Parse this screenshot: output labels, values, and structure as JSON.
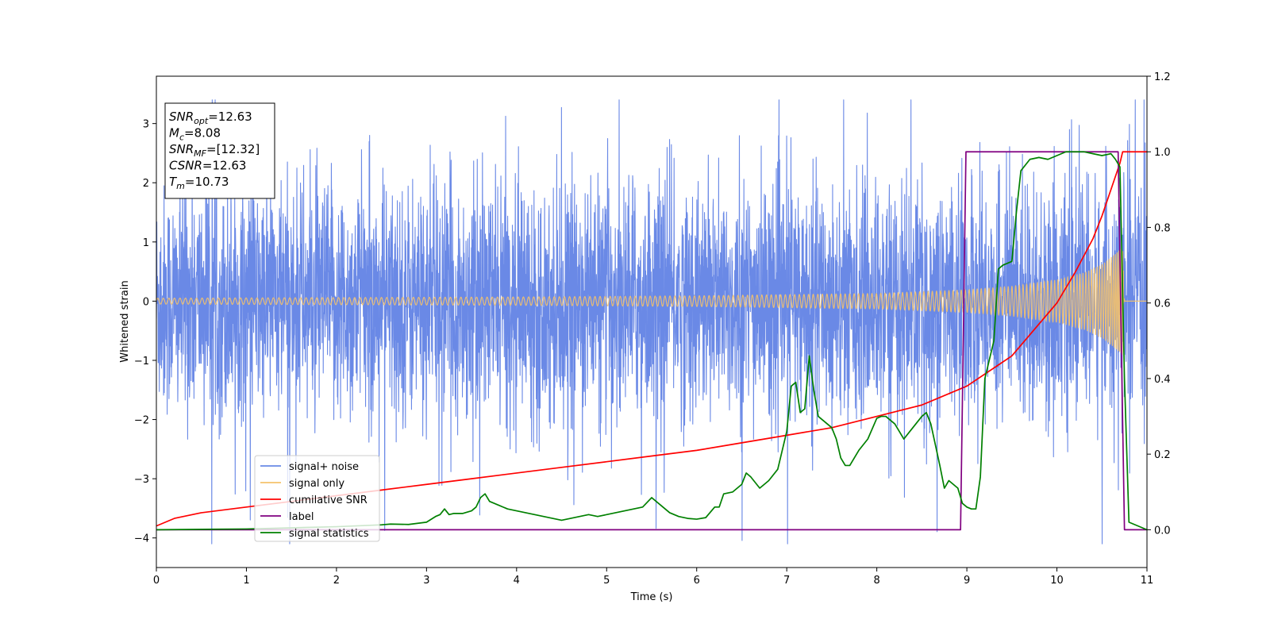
{
  "chart_data": {
    "type": "line",
    "xlabel": "Time (s)",
    "ylabel": "Whitened strain",
    "xlim": [
      0,
      11
    ],
    "ylim_left": [
      -4.5,
      3.8
    ],
    "ylim_right": [
      -0.1,
      1.2
    ],
    "xticks": [
      0,
      1,
      2,
      3,
      4,
      5,
      6,
      7,
      8,
      9,
      10,
      11
    ],
    "yticks_left": [
      -4,
      -3,
      -2,
      -1,
      0,
      1,
      2,
      3
    ],
    "yticks_right": [
      0.0,
      0.2,
      0.4,
      0.6,
      0.8,
      1.0,
      1.2
    ],
    "grid": false,
    "legend_position": "lower-left",
    "annotation": {
      "lines": [
        {
          "sym": "SNR",
          "sub": "opt",
          "value": "=12.63"
        },
        {
          "sym": "M",
          "sub": "c",
          "value": "=8.08"
        },
        {
          "sym": "SNR",
          "sub": "MF",
          "value": "=[12.32]"
        },
        {
          "sym": "CSNR",
          "sub": "",
          "value": "=12.63"
        },
        {
          "sym": "T",
          "sub": "m",
          "value": "=10.73"
        }
      ]
    },
    "series": [
      {
        "name": "signal+ noise",
        "axis": "left",
        "color": "#6a89e6",
        "noise_envelope": {
          "typical_abs": 1.6,
          "max_abs": 3.4
        },
        "note_values": "dense noisy strain, min about -4.15 near t=3.38, max about 3.42 near t=8.1"
      },
      {
        "name": "signal only",
        "axis": "left",
        "color": "#f4c26b",
        "amplitude": [
          [
            0,
            0.05
          ],
          [
            2,
            0.06
          ],
          [
            4,
            0.07
          ],
          [
            6,
            0.09
          ],
          [
            8,
            0.13
          ],
          [
            9,
            0.19
          ],
          [
            9.5,
            0.25
          ],
          [
            10,
            0.36
          ],
          [
            10.3,
            0.48
          ],
          [
            10.5,
            0.62
          ],
          [
            10.65,
            0.8
          ],
          [
            10.73,
            0.92
          ],
          [
            10.75,
            0.0
          ],
          [
            11,
            0.0
          ]
        ]
      },
      {
        "name": "cumilative SNR",
        "axis": "right",
        "color": "#ff0000",
        "x": [
          0,
          0.2,
          0.5,
          1,
          1.5,
          2,
          2.5,
          3,
          3.5,
          4,
          4.5,
          5,
          5.5,
          6,
          6.5,
          7,
          7.5,
          8,
          8.5,
          9,
          9.5,
          10,
          10.2,
          10.4,
          10.5,
          10.6,
          10.7,
          10.73,
          11
        ],
        "y": [
          0.01,
          0.03,
          0.045,
          0.06,
          0.075,
          0.09,
          0.105,
          0.12,
          0.135,
          0.15,
          0.165,
          0.18,
          0.195,
          0.21,
          0.23,
          0.25,
          0.27,
          0.3,
          0.33,
          0.38,
          0.46,
          0.6,
          0.68,
          0.77,
          0.83,
          0.9,
          0.97,
          1.0,
          1.0
        ]
      },
      {
        "name": "label",
        "axis": "right",
        "color": "#800080",
        "x": [
          0,
          8.93,
          8.99,
          10.68,
          10.75,
          11
        ],
        "y": [
          0,
          0,
          1,
          1,
          0,
          0
        ]
      },
      {
        "name": "signal statistics",
        "axis": "right",
        "color": "#008000",
        "x": [
          0,
          1.0,
          2.0,
          2.5,
          2.6,
          2.8,
          3.0,
          3.1,
          3.15,
          3.2,
          3.25,
          3.3,
          3.4,
          3.5,
          3.55,
          3.6,
          3.65,
          3.7,
          3.8,
          3.9,
          4.0,
          4.1,
          4.2,
          4.3,
          4.4,
          4.5,
          4.6,
          4.7,
          4.8,
          4.9,
          5.0,
          5.1,
          5.2,
          5.3,
          5.4,
          5.5,
          5.55,
          5.6,
          5.7,
          5.8,
          5.9,
          6.0,
          6.1,
          6.2,
          6.25,
          6.3,
          6.4,
          6.5,
          6.55,
          6.6,
          6.7,
          6.8,
          6.9,
          7.0,
          7.05,
          7.1,
          7.15,
          7.2,
          7.25,
          7.3,
          7.35,
          7.4,
          7.5,
          7.55,
          7.6,
          7.65,
          7.7,
          7.8,
          7.9,
          8.0,
          8.05,
          8.1,
          8.2,
          8.3,
          8.4,
          8.5,
          8.55,
          8.6,
          8.7,
          8.75,
          8.8,
          8.9,
          8.95,
          9.0,
          9.05,
          9.1,
          9.15,
          9.2,
          9.3,
          9.35,
          9.4,
          9.5,
          9.55,
          9.6,
          9.7,
          9.8,
          9.9,
          10.0,
          10.1,
          10.2,
          10.3,
          10.4,
          10.5,
          10.6,
          10.65,
          10.7,
          10.75,
          10.8,
          11
        ],
        "y": [
          0.0,
          0.002,
          0.008,
          0.013,
          0.015,
          0.014,
          0.02,
          0.035,
          0.04,
          0.055,
          0.04,
          0.043,
          0.043,
          0.05,
          0.06,
          0.085,
          0.095,
          0.075,
          0.065,
          0.055,
          0.05,
          0.045,
          0.04,
          0.035,
          0.03,
          0.025,
          0.03,
          0.035,
          0.04,
          0.035,
          0.04,
          0.045,
          0.05,
          0.055,
          0.06,
          0.085,
          0.075,
          0.065,
          0.045,
          0.035,
          0.03,
          0.028,
          0.032,
          0.06,
          0.06,
          0.095,
          0.1,
          0.12,
          0.15,
          0.14,
          0.11,
          0.13,
          0.16,
          0.26,
          0.38,
          0.39,
          0.31,
          0.32,
          0.46,
          0.37,
          0.3,
          0.29,
          0.27,
          0.24,
          0.19,
          0.17,
          0.17,
          0.21,
          0.24,
          0.295,
          0.3,
          0.3,
          0.28,
          0.24,
          0.27,
          0.3,
          0.31,
          0.28,
          0.17,
          0.11,
          0.13,
          0.11,
          0.07,
          0.06,
          0.055,
          0.055,
          0.14,
          0.4,
          0.5,
          0.69,
          0.7,
          0.71,
          0.84,
          0.95,
          0.98,
          0.985,
          0.98,
          0.99,
          1.0,
          1.0,
          1.0,
          0.995,
          0.99,
          0.995,
          0.98,
          0.96,
          0.4,
          0.02,
          0.0
        ]
      }
    ]
  }
}
